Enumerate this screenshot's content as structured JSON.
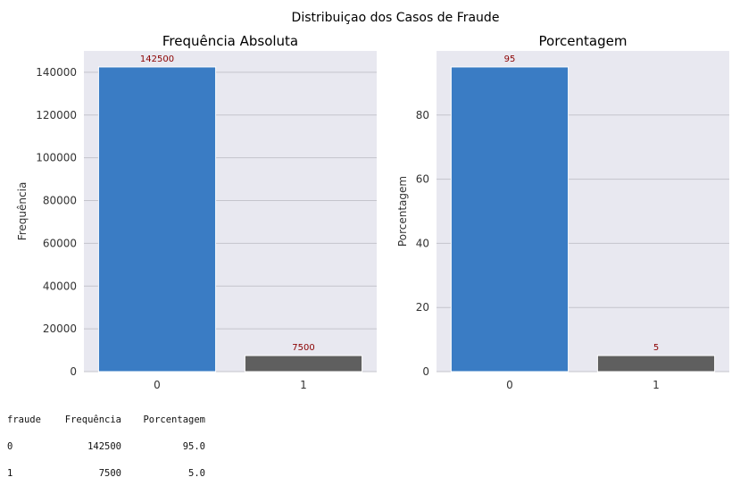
{
  "suptitle": "Distribuiçao dos Casos de Fraude",
  "colors": {
    "class0": "#3a7cc4",
    "class1": "#5f5f5f",
    "axes_bg": "#e8e8f0",
    "grid": "#c4c4cc",
    "data_label": "#8b0000"
  },
  "chart_data": [
    {
      "type": "bar",
      "title": "Frequência Absoluta",
      "xlabel": "",
      "ylabel": "Frequência",
      "categories": [
        "0",
        "1"
      ],
      "values": [
        142500,
        7500
      ],
      "data_labels": [
        "142500",
        "7500"
      ],
      "ylim": [
        0,
        150000
      ],
      "yticks": [
        0,
        20000,
        40000,
        60000,
        80000,
        100000,
        120000,
        140000
      ],
      "grid": true
    },
    {
      "type": "bar",
      "title": "Porcentagem",
      "xlabel": "",
      "ylabel": "Porcentagem",
      "categories": [
        "0",
        "1"
      ],
      "values": [
        95,
        5
      ],
      "data_labels": [
        "95",
        "5"
      ],
      "ylim": [
        0,
        100
      ],
      "yticks": [
        0,
        20,
        40,
        60,
        80
      ],
      "grid": true
    }
  ],
  "table": {
    "headers": [
      "fraude",
      "Frequência",
      "Porcentagem"
    ],
    "rows": [
      [
        "0",
        "142500",
        "95.0"
      ],
      [
        "1",
        "7500",
        "5.0"
      ]
    ]
  }
}
